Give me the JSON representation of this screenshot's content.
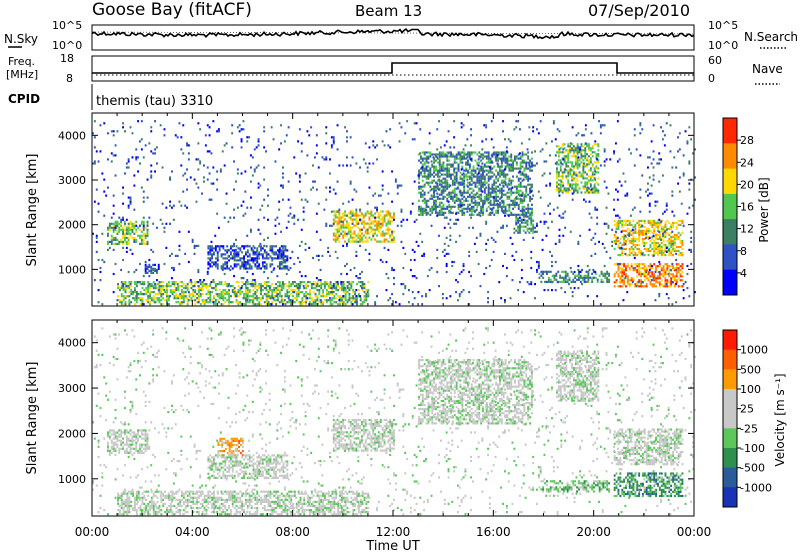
{
  "header": {
    "station": "Goose Bay (fitACF)",
    "beam": "Beam 13",
    "date": "07/Sep/2010"
  },
  "status_panels": {
    "nsky_label": "N.Sky",
    "nsearch_label": "N.Search",
    "freq_label_line1": "Freq.",
    "freq_label_line2": "[MHz]",
    "nave_label": "Nave",
    "cpid_label": "CPID",
    "cpid_value": "themis (tau) 3310",
    "nsky_ticks": [
      "10^5",
      "10^0"
    ],
    "nsearch_ticks": [
      "10^5",
      "10^0"
    ],
    "freq_ticks": [
      "18",
      "8"
    ],
    "nave_ticks": [
      "60",
      "0"
    ]
  },
  "chart_data": [
    {
      "type": "heatmap",
      "name": "power",
      "ylabel": "Slant Range [km]",
      "xlim_hours": [
        0,
        24
      ],
      "ylim_km": [
        180,
        4500
      ],
      "yticks": [
        "4000",
        "3000",
        "2000",
        "1000"
      ],
      "colorbar_label": "Power [dB]",
      "colorbar_ticks": [
        "28",
        "24",
        "20",
        "16",
        "12",
        "8",
        "4"
      ],
      "colors": [
        "#0000ff",
        "#2f52c4",
        "#3c7f64",
        "#50c850",
        "#ffd800",
        "#ff8c00",
        "#ff2800"
      ],
      "regions": [
        {
          "t": [
            0.6,
            2.2
          ],
          "r": [
            1550,
            2050
          ],
          "level": 3
        },
        {
          "t": [
            2.1,
            2.7
          ],
          "r": [
            900,
            1100
          ],
          "level": 1
        },
        {
          "t": [
            4.6,
            7.8
          ],
          "r": [
            1000,
            1500
          ],
          "level": 1
        },
        {
          "t": [
            1.0,
            11.0
          ],
          "r": [
            200,
            700
          ],
          "level": 3
        },
        {
          "t": [
            9.6,
            12.0
          ],
          "r": [
            1600,
            2300
          ],
          "level": 4
        },
        {
          "t": [
            13.0,
            17.5
          ],
          "r": [
            2200,
            3600
          ],
          "level": 2
        },
        {
          "t": [
            16.8,
            17.6
          ],
          "r": [
            1800,
            2200
          ],
          "level": 2
        },
        {
          "t": [
            18.5,
            20.2
          ],
          "r": [
            2700,
            3800
          ],
          "level": 3
        },
        {
          "t": [
            17.8,
            20.6
          ],
          "r": [
            700,
            950
          ],
          "level": 2
        },
        {
          "t": [
            20.8,
            23.5
          ],
          "r": [
            1300,
            2100
          ],
          "level": 4
        },
        {
          "t": [
            20.8,
            23.5
          ],
          "r": [
            600,
            1100
          ],
          "level": 5
        },
        {
          "t": [
            0.0,
            24.0
          ],
          "r": [
            200,
            4300
          ],
          "level": 1,
          "sparse": true
        }
      ]
    },
    {
      "type": "heatmap",
      "name": "velocity",
      "ylabel": "Slant Range [km]",
      "xlabel": "Time UT",
      "xticks": [
        "00:00",
        "04:00",
        "08:00",
        "12:00",
        "16:00",
        "20:00",
        "00:00"
      ],
      "xlim_hours": [
        0,
        24
      ],
      "ylim_km": [
        180,
        4500
      ],
      "yticks": [
        "4000",
        "3000",
        "2000",
        "1000"
      ],
      "colorbar_label": "Velocity [m s⁻¹]",
      "colorbar_ticks": [
        "1000",
        "500",
        "100",
        "25",
        "-25",
        "-100",
        "-500",
        "-1000"
      ],
      "colors": [
        "#1a32b4",
        "#2a5c9a",
        "#2e8f4e",
        "#5cc85c",
        "#c8c8c8",
        "#c8c8c8",
        "#ff9a00",
        "#ff6000",
        "#ff1a00"
      ],
      "regions": [
        {
          "t": [
            0.6,
            2.2
          ],
          "r": [
            1550,
            2050
          ],
          "level": 4
        },
        {
          "t": [
            5.0,
            6.0
          ],
          "r": [
            1500,
            1900
          ],
          "level": 6
        },
        {
          "t": [
            4.6,
            7.8
          ],
          "r": [
            1000,
            1500
          ],
          "level": 4
        },
        {
          "t": [
            1.0,
            11.0
          ],
          "r": [
            200,
            700
          ],
          "level": 4
        },
        {
          "t": [
            9.6,
            12.0
          ],
          "r": [
            1600,
            2300
          ],
          "level": 4
        },
        {
          "t": [
            13.0,
            17.5
          ],
          "r": [
            2200,
            3600
          ],
          "level": 4
        },
        {
          "t": [
            18.5,
            20.2
          ],
          "r": [
            2700,
            3800
          ],
          "level": 4
        },
        {
          "t": [
            17.8,
            20.6
          ],
          "r": [
            700,
            950
          ],
          "level": 3
        },
        {
          "t": [
            20.8,
            23.5
          ],
          "r": [
            1300,
            2100
          ],
          "level": 4
        },
        {
          "t": [
            20.8,
            23.5
          ],
          "r": [
            600,
            1100
          ],
          "level": 2
        },
        {
          "t": [
            0.0,
            24.0
          ],
          "r": [
            200,
            4300
          ],
          "level": 4,
          "sparse": true
        }
      ]
    }
  ]
}
